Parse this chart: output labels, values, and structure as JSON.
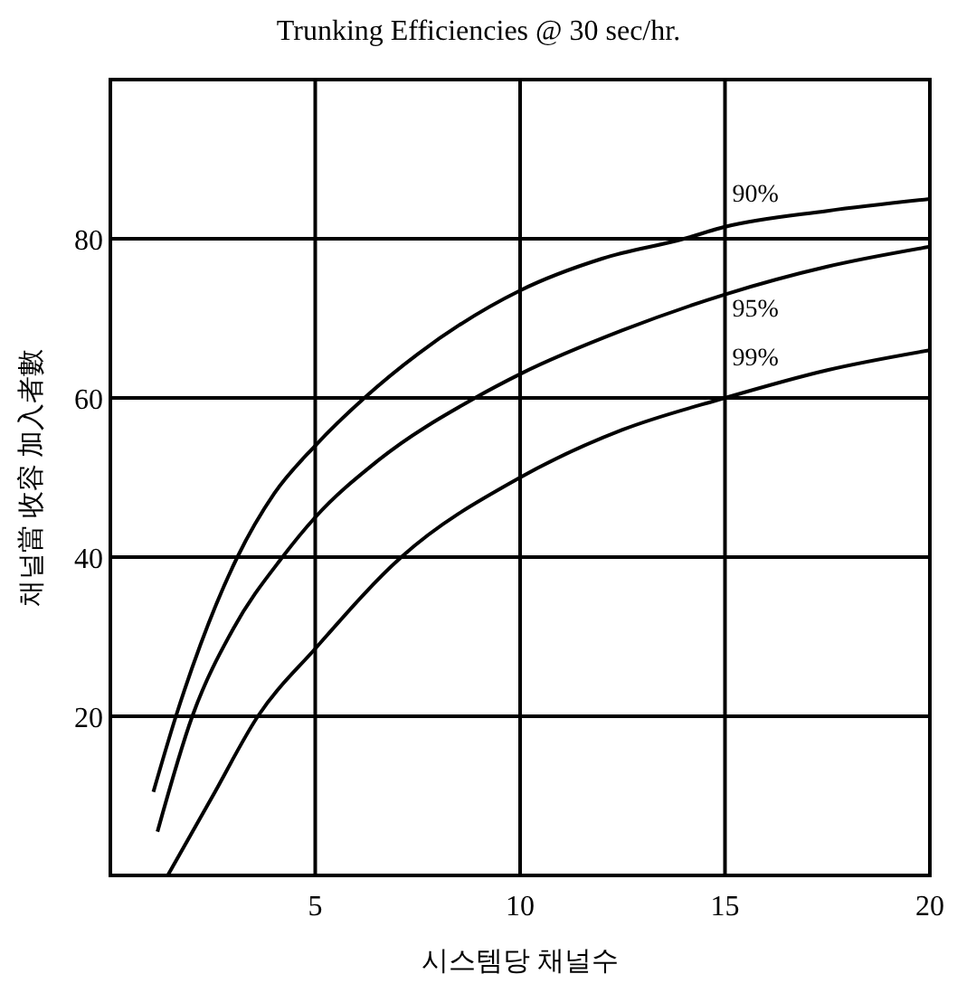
{
  "chart_data": {
    "type": "line",
    "title": "Trunking Efficiencies @ 30 sec/hr.",
    "xlabel": "시스템당 채널수",
    "ylabel": "채널當 收容 加入者數",
    "xlim": [
      0,
      20
    ],
    "ylim": [
      0,
      100
    ],
    "xticks": [
      5,
      10,
      15,
      20
    ],
    "yticks": [
      20,
      40,
      60,
      80
    ],
    "grid": true,
    "marker": "none",
    "line_style": "solid",
    "series": [
      {
        "name": "90%",
        "color": "#000000",
        "x": [
          1.05,
          1.6,
          2.2,
          3.1,
          4,
          5,
          6.2,
          7.5,
          10,
          12,
          14,
          15,
          17.5,
          20
        ],
        "values": [
          10.5,
          20,
          29,
          40,
          48,
          54,
          60,
          65.5,
          73.5,
          77.5,
          80,
          81.5,
          83.5,
          85
        ]
      },
      {
        "name": "95%",
        "color": "#000000",
        "x": [
          1.15,
          2,
          3,
          4.2,
          5,
          6.5,
          8.9,
          10,
          12.5,
          15,
          17.5,
          20
        ],
        "values": [
          5.5,
          20,
          31,
          40,
          45,
          52,
          60,
          63,
          68.5,
          73,
          76.5,
          79
        ]
      },
      {
        "name": "99%",
        "color": "#000000",
        "x": [
          1.4,
          2.5,
          3.6,
          5,
          7.1,
          10,
          12.5,
          15,
          17.5,
          20
        ],
        "values": [
          0,
          10,
          20,
          28.5,
          40,
          50,
          56,
          60,
          63.5,
          66
        ]
      }
    ]
  }
}
